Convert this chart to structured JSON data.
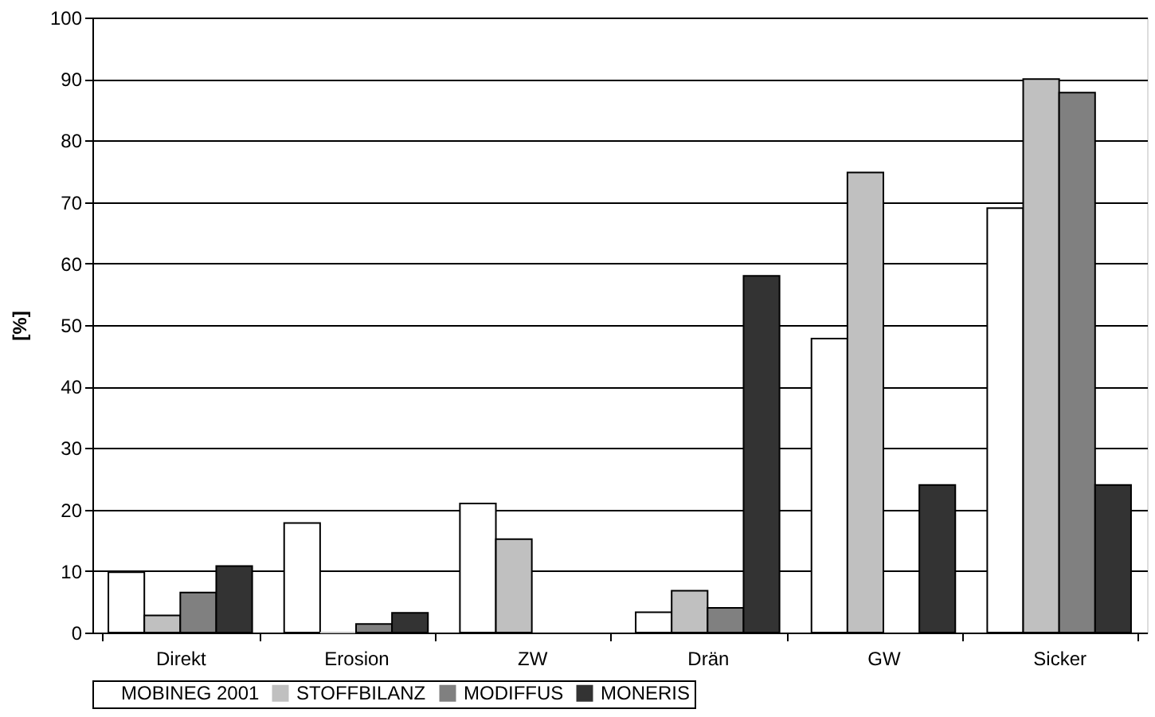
{
  "chart_data": {
    "type": "bar",
    "ylabel": "[%]",
    "categories": [
      "Direkt",
      "Erosion",
      "ZW",
      "Drän",
      "GW",
      "Sicker"
    ],
    "series": [
      {
        "name": "MOBINEG 2001",
        "color": "#ffffff",
        "values": [
          9.8,
          17.8,
          21,
          3.3,
          47.8,
          69
        ]
      },
      {
        "name": "STOFFBILANZ",
        "color": "#c0c0c0",
        "values": [
          2.8,
          0,
          15.2,
          6.8,
          74.8,
          90
        ]
      },
      {
        "name": "MODIFFUS",
        "color": "#808080",
        "values": [
          6.5,
          1.4,
          null,
          4.0,
          null,
          87.8
        ]
      },
      {
        "name": "MONERIS",
        "color": "#333333",
        "values": [
          10.8,
          3.2,
          null,
          58,
          24,
          24
        ]
      }
    ],
    "ylim": [
      0,
      100
    ],
    "yticks": [
      0,
      10,
      20,
      30,
      40,
      50,
      60,
      70,
      80,
      90,
      100
    ],
    "grid": "y",
    "legend": "bottom"
  }
}
